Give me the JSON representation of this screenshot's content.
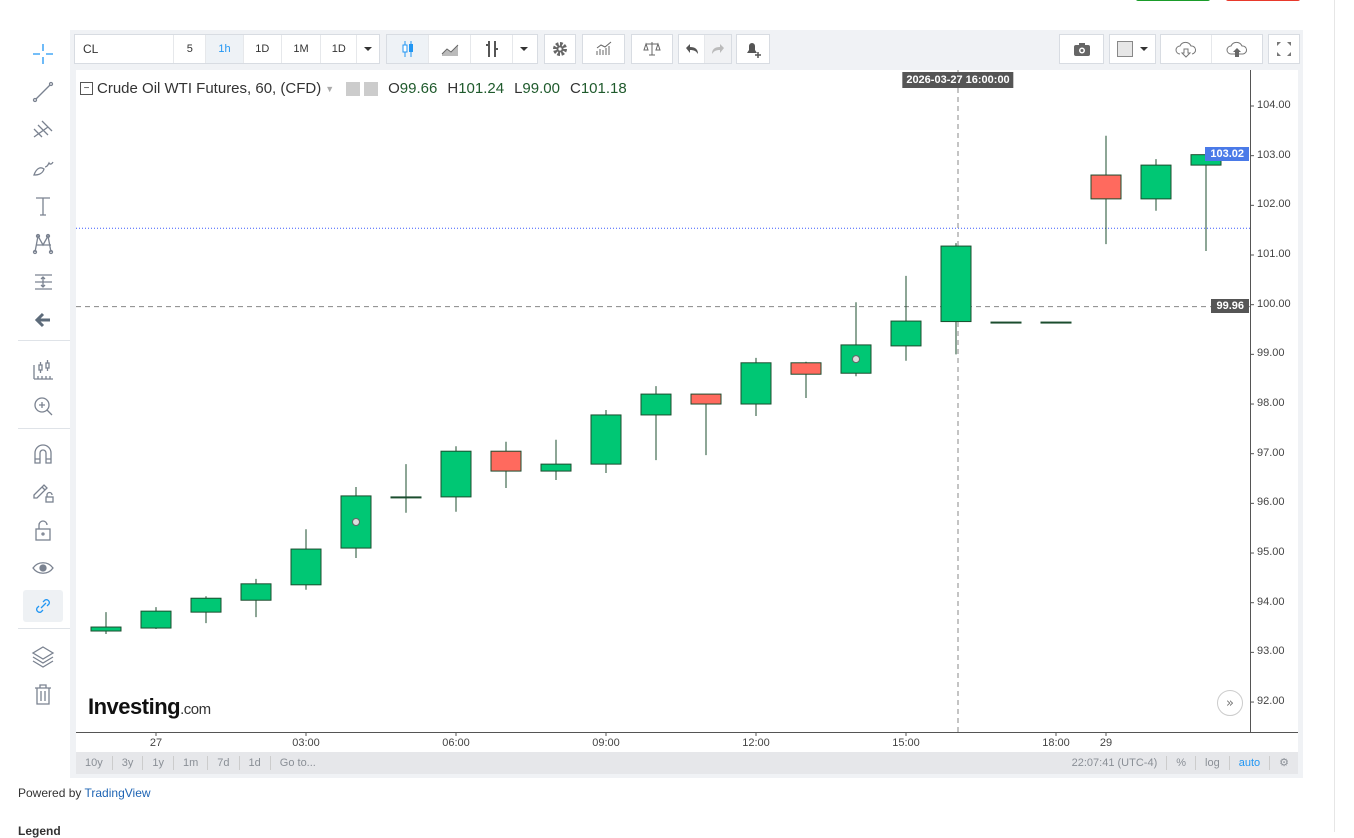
{
  "toolbar": {
    "symbol": "CL",
    "intervals": [
      "5",
      "1h",
      "1D",
      "1M",
      "1D"
    ],
    "active_interval": "1h"
  },
  "left_tools": [
    "crosshair-icon",
    "trend-line-icon",
    "pitchfork-icon",
    "brush-icon",
    "text-icon",
    "pattern-icon",
    "fib-icon",
    "back-arrow-icon",
    "measure-icon",
    "zoom-in-icon",
    "magnet-icon",
    "lock-drawing-icon",
    "unlock-icon",
    "eye-icon",
    "link-icon",
    "layers-icon",
    "trash-icon"
  ],
  "legend": {
    "title": "Crude Oil WTI Futures, 60, (CFD)",
    "o_label": "O",
    "o": "99.66",
    "h_label": "H",
    "h": "101.24",
    "l_label": "L",
    "l": "99.00",
    "c_label": "C",
    "c": "101.18"
  },
  "logo": {
    "brand": "Investing",
    "suffix": ".com"
  },
  "crosshair": {
    "time": "2026-03-27 16:00:00",
    "price": "99.96"
  },
  "last_price": "103.02",
  "bottom_bar": {
    "ranges": [
      "10y",
      "3y",
      "1y",
      "1m",
      "7d",
      "1d",
      "Go to..."
    ],
    "clock": "22:07:41 (UTC-4)",
    "percent": "%",
    "log": "log",
    "auto": "auto"
  },
  "footer": {
    "powered_by": "Powered by",
    "link": "TradingView",
    "legend_heading": "Legend"
  },
  "colors": {
    "up": "#00c774",
    "down": "#ff6a5e",
    "wick": "#1b4d2e",
    "last_price_bg": "#4a7ae8",
    "accent": "#2196f3"
  },
  "chart_data": {
    "type": "candlestick",
    "title": "Crude Oil WTI Futures, 60, (CFD)",
    "ylim": [
      91.4,
      105.3
    ],
    "y_ticks": [
      "92.00",
      "93.00",
      "94.00",
      "95.00",
      "96.00",
      "97.00",
      "98.00",
      "99.00",
      "100.00",
      "101.00",
      "102.00",
      "103.00",
      "104.00"
    ],
    "x_ticks": [
      {
        "label": "27",
        "index": 1
      },
      {
        "label": "03:00",
        "index": 4
      },
      {
        "label": "06:00",
        "index": 7
      },
      {
        "label": "09:00",
        "index": 10
      },
      {
        "label": "12:00",
        "index": 13
      },
      {
        "label": "15:00",
        "index": 16
      },
      {
        "label": "18:00",
        "index": 19
      },
      {
        "label": "29",
        "index": 20
      }
    ],
    "reference_line": 101.54,
    "markers_at_index": [
      5,
      15
    ],
    "candles": [
      {
        "o": 93.43,
        "h": 93.81,
        "l": 93.37,
        "c": 93.51
      },
      {
        "o": 93.49,
        "h": 93.91,
        "l": 93.47,
        "c": 93.83
      },
      {
        "o": 93.81,
        "h": 94.13,
        "l": 93.59,
        "c": 94.09
      },
      {
        "o": 94.05,
        "h": 94.48,
        "l": 93.71,
        "c": 94.38
      },
      {
        "o": 94.36,
        "h": 95.48,
        "l": 94.26,
        "c": 95.08
      },
      {
        "o": 95.1,
        "h": 96.33,
        "l": 94.9,
        "c": 96.15
      },
      {
        "o": 96.12,
        "h": 96.79,
        "l": 95.81,
        "c": 96.13
      },
      {
        "o": 96.13,
        "h": 97.15,
        "l": 95.83,
        "c": 97.05
      },
      {
        "o": 97.05,
        "h": 97.24,
        "l": 96.31,
        "c": 96.65
      },
      {
        "o": 96.65,
        "h": 97.28,
        "l": 96.47,
        "c": 96.79
      },
      {
        "o": 96.79,
        "h": 97.88,
        "l": 96.61,
        "c": 97.78
      },
      {
        "o": 97.78,
        "h": 98.36,
        "l": 96.87,
        "c": 98.2
      },
      {
        "o": 98.2,
        "h": 98.2,
        "l": 96.97,
        "c": 98.0
      },
      {
        "o": 98.0,
        "h": 98.93,
        "l": 97.76,
        "c": 98.83
      },
      {
        "o": 98.83,
        "h": 98.85,
        "l": 98.12,
        "c": 98.6
      },
      {
        "o": 98.62,
        "h": 100.05,
        "l": 98.56,
        "c": 99.19
      },
      {
        "o": 99.17,
        "h": 100.58,
        "l": 98.87,
        "c": 99.67
      },
      {
        "o": 99.66,
        "h": 101.24,
        "l": 99.0,
        "c": 101.18
      },
      {
        "o": 99.65,
        "h": 99.65,
        "l": 99.65,
        "c": 99.65
      },
      {
        "o": 99.65,
        "h": 99.65,
        "l": 99.65,
        "c": 99.65
      },
      {
        "o": 102.61,
        "h": 103.4,
        "l": 101.22,
        "c": 102.13
      },
      {
        "o": 102.13,
        "h": 102.93,
        "l": 101.89,
        "c": 102.81
      },
      {
        "o": 102.81,
        "h": 103.15,
        "l": 101.08,
        "c": 103.02
      }
    ]
  }
}
